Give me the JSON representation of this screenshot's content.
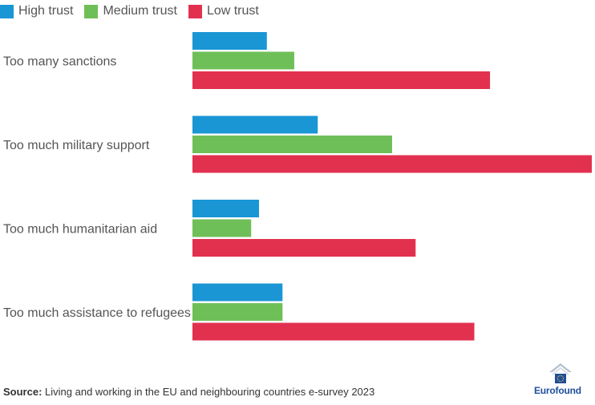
{
  "chart_data": {
    "type": "bar",
    "orientation": "horizontal",
    "categories": [
      "Too many sanctions",
      "Too much military support",
      "Too much humanitarian aid",
      "Too much assistance to refugees"
    ],
    "series": [
      {
        "name": "High trust",
        "color": "#1a96d4",
        "values": [
          19,
          32,
          17,
          23
        ]
      },
      {
        "name": "Medium trust",
        "color": "#6fbf58",
        "values": [
          26,
          51,
          15,
          23
        ]
      },
      {
        "name": "Low trust",
        "color": "#e2314f",
        "values": [
          76,
          102,
          57,
          72
        ]
      }
    ],
    "xlim": [
      0,
      102
    ],
    "grid": false,
    "legend": "top-left"
  },
  "footer": {
    "source_label": "Source:",
    "source_text": "Living and working in the EU and neighbouring countries e-survey 2023"
  },
  "brand": {
    "name": "Eurofound"
  }
}
